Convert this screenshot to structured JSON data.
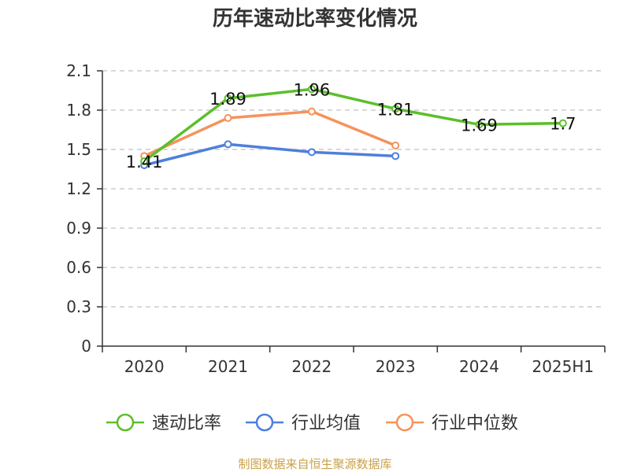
{
  "chart_data": {
    "type": "line",
    "title": "历年速动比率变化情况",
    "categories": [
      "2020",
      "2021",
      "2022",
      "2023",
      "2024",
      "2025H1"
    ],
    "ylim": [
      0,
      2.1
    ],
    "yticks": [
      "0",
      "0.3",
      "0.6",
      "0.9",
      "1.2",
      "1.5",
      "1.8",
      "2.1"
    ],
    "grid": true,
    "legend_position": "bottom",
    "series": [
      {
        "name": "速动比率",
        "color": "#5cbf2a",
        "values": [
          1.41,
          1.89,
          1.96,
          1.81,
          1.69,
          1.7
        ],
        "labels": [
          "1.41",
          "1.89",
          "1.96",
          "1.81",
          "1.69",
          "1.7"
        ]
      },
      {
        "name": "行业均值",
        "color": "#4f7fdc",
        "values": [
          1.38,
          1.54,
          1.48,
          1.45,
          null,
          null
        ],
        "labels": []
      },
      {
        "name": "行业中位数",
        "color": "#f5935b",
        "values": [
          1.45,
          1.74,
          1.79,
          1.53,
          null,
          null
        ],
        "labels": []
      }
    ],
    "source": "制图数据来自恒生聚源数据库"
  }
}
